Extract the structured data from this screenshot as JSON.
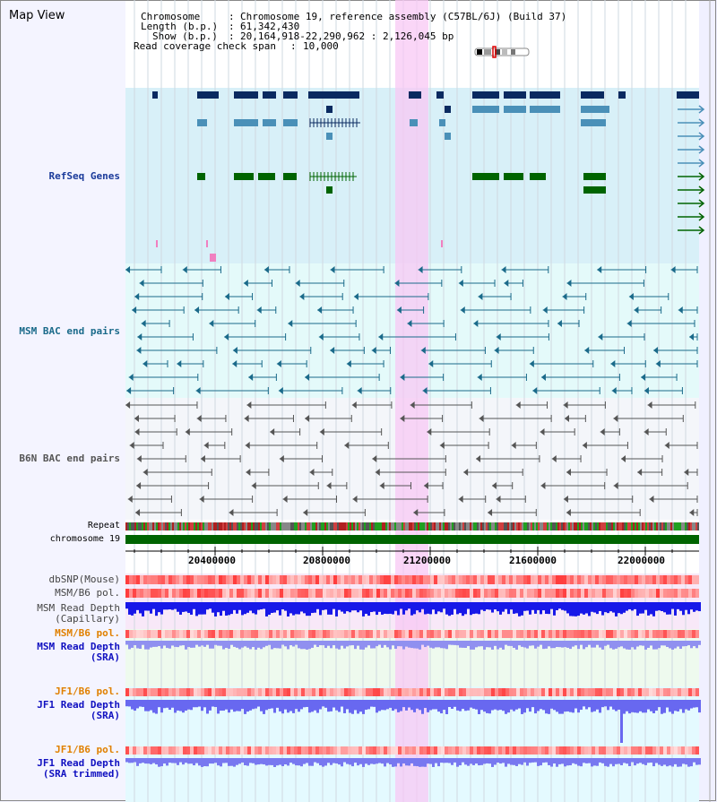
{
  "window": {
    "title": "Map View"
  },
  "header": {
    "chromosome_label": "Chromosome",
    "chromosome_value": "Chromosome 19, reference assembly (C57BL/6J) (Build 37)",
    "length_label": "Length (b.p.)",
    "length_value": "61,342,430",
    "show_label": "Show (b.p.)",
    "show_value": "20,164,918-22,290,962 : 2,126,045 bp",
    "coverage_label": "Read coverage check span",
    "coverage_value": "10,000"
  },
  "tracks": {
    "refseq": "RefSeq Genes",
    "msm_bac": "MSM BAC end pairs",
    "b6n_bac": "B6N BAC end pairs",
    "repeat": "Repeat",
    "chromosome": "chromosome 19",
    "dbsnp": "dbSNP(Mouse)",
    "msm_b6_pol": "MSM/B6 pol.",
    "msm_depth_cap_1": "MSM Read Depth",
    "msm_depth_cap_2": "(Capillary)",
    "msm_b6_pol_2": "MSM/B6 pol.",
    "msm_depth_sra_1": "MSM Read Depth",
    "msm_depth_sra_2": "(SRA)",
    "jf1_b6_pol": "JF1/B6 pol.",
    "jf1_depth_sra_1": "JF1 Read Depth",
    "jf1_depth_sra_2": "(SRA)",
    "jf1_b6_pol_2": "JF1/B6 pol.",
    "jf1_depth_trim_1": "JF1 Read Depth",
    "jf1_depth_trim_2": "(SRA trimmed)"
  },
  "axis": {
    "ticks": [
      "20400000",
      "20800000",
      "21200000",
      "21600000",
      "22000000"
    ]
  },
  "colors": {
    "refseq_bg": "#d8f0f8",
    "bac_bg": "#e4fafa",
    "b6n_bg": "#f4f6fa",
    "highlight": "#f8d0f4",
    "gene_dark": "#0a2a60",
    "gene_mid": "#4a90b8",
    "gene_green": "#006400",
    "msm_line": "#1a6a8a",
    "b6n_line": "#555555",
    "label_blue": "#1a3a9a",
    "label_orange": "#e08000",
    "depth_blue": "#1010e0",
    "depth_light": "#8888f0"
  }
}
